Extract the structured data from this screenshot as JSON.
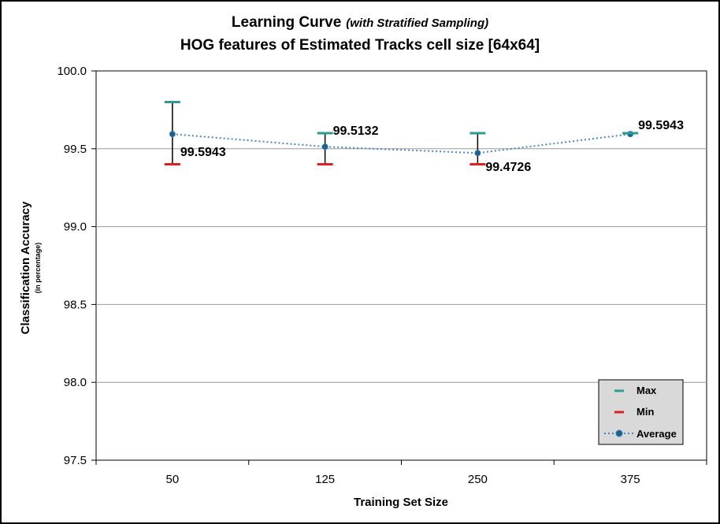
{
  "chart_data": {
    "type": "line",
    "title": "Learning Curve",
    "title_italic": "(with Stratified Sampling)",
    "subtitle": "HOG features of Estimated Tracks cell size [64x64]",
    "xlabel": "Training Set Size",
    "ylabel": "Classification Accuracy",
    "ylabel_sub": "(in percentage)",
    "categories": [
      "50",
      "125",
      "250",
      "375"
    ],
    "ylim": [
      97.5,
      100.0
    ],
    "yticks": [
      "97.5",
      "98.0",
      "98.5",
      "99.0",
      "99.5",
      "100.0"
    ],
    "grid": "horizontal",
    "legend_position": "bottom-right",
    "series": [
      {
        "name": "Max",
        "values": [
          99.8,
          99.6,
          99.6,
          99.6
        ],
        "color": "#2a9d8f",
        "style": "dash-marker"
      },
      {
        "name": "Min",
        "values": [
          99.4,
          99.4,
          99.4,
          99.6
        ],
        "color": "#e02020",
        "style": "dash-marker"
      },
      {
        "name": "Average",
        "values": [
          99.5943,
          99.5132,
          99.4726,
          99.5943
        ],
        "color": "#4a86c0",
        "style": "dotted-line"
      }
    ],
    "data_labels": [
      "99.5943",
      "99.5132",
      "99.4726",
      "99.5943"
    ]
  }
}
